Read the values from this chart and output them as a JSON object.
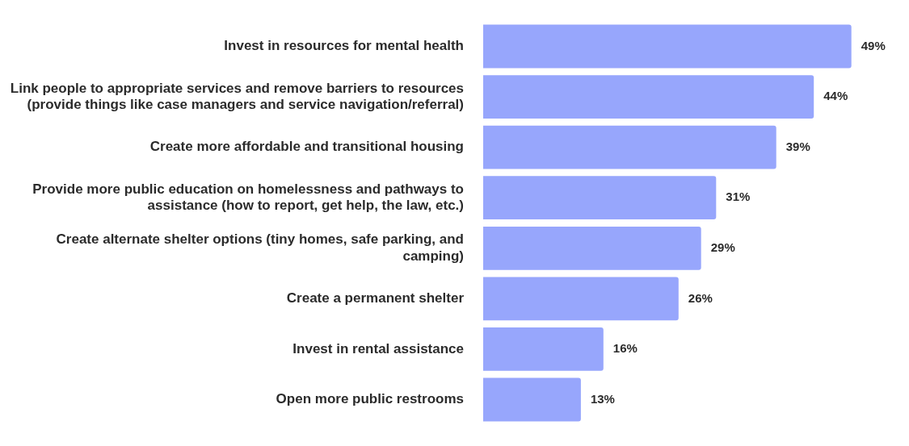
{
  "chart_data": {
    "type": "bar",
    "orientation": "horizontal",
    "categories": [
      "Invest in resources for mental health",
      "Link people to appropriate services and remove barriers to resources (provide things like case managers and service navigation/referral)",
      "Create more affordable and transitional housing",
      "Provide more public education on homelessness and pathways to assistance (how to report, get help, the law, etc.)",
      "Create alternate shelter options (tiny homes, safe parking, and camping)",
      "Create a permanent shelter",
      "Invest in rental assistance",
      "Open more public restrooms"
    ],
    "values": [
      49,
      44,
      39,
      31,
      29,
      26,
      16,
      13
    ],
    "value_labels": [
      "49%",
      "44%",
      "39%",
      "31%",
      "29%",
      "26%",
      "16%",
      "13%"
    ],
    "color": "#97a6fc",
    "grid": false,
    "legend": false,
    "tick_labels": "y"
  }
}
